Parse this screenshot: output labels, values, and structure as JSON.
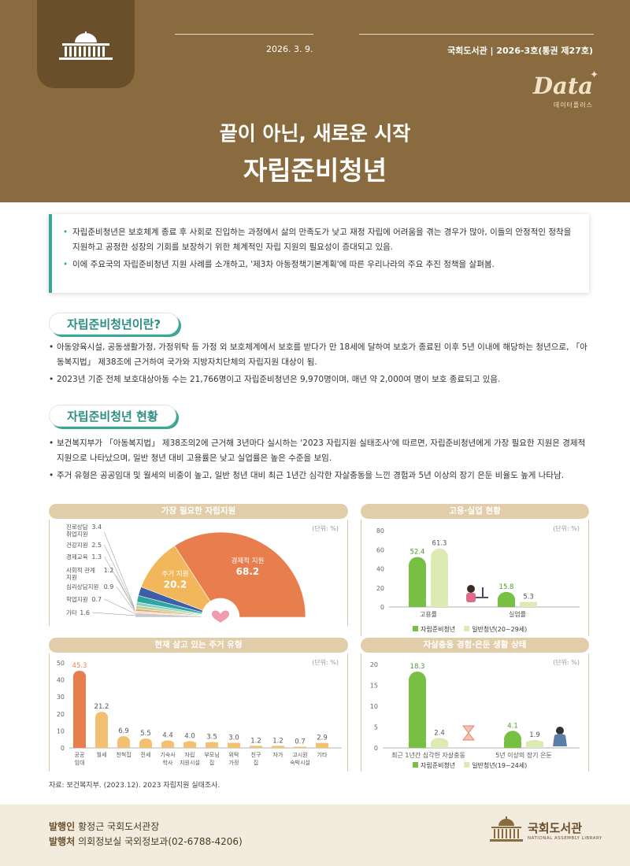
{
  "header": {
    "date": "2026. 3. 9.",
    "issue": "국회도서관 | 2026-3호(통권 제27호)",
    "brand": "Data",
    "brand_sub": "데이터플러스",
    "title_line1": "끝이 아닌, 새로운 시작",
    "title_line2": "자립준비청년"
  },
  "summary": [
    "자립준비청년은 보호체계 종료 후 사회로 진입하는 과정에서 삶의 만족도가 낮고 재정 자립에 어려움을 겪는 경우가 많아, 이들의 안정적인 정착을 지원하고 공정한 성장의 기회를 보장하기 위한 체계적인 자립 지원의 필요성이 증대되고 있음.",
    "이에 주요국의 자립준비청년 지원 사례를 소개하고, '제3차 아동정책기본계획'에 따른 우리나라의 주요 추진 정책을 살펴봄."
  ],
  "section1": {
    "title": "자립준비청년이란?",
    "bullets": [
      "아동양육시설, 공동생활가정, 가정위탁 등 가정 외 보호체계에서 보호를 받다가 만 18세에 달하여 보호가 종료된 이후 5년 이내에 해당하는 청년으로, 「아동복지법」 제38조에 근거하여 국가와 지방자치단체의 자립지원 대상이 됨.",
      "2023년 기준 전체 보호대상아동 수는 21,766명이고 자립준비청년은 9,970명이며, 매년 약 2,000여 명이 보호 종료되고 있음."
    ]
  },
  "section2": {
    "title": "자립준비청년 현황",
    "bullets": [
      "보건복지부가 「아동복지법」 제38조의2에 근거해 3년마다 실시하는 '2023 자립지원 실태조사'에 따르면, 자립준비청년에게 가장 필요한 지원은 경제적 지원으로 나타났으며, 일반 청년 대비 고용률은 낮고 실업률은 높은 수준을 보임.",
      "주거 유형은 공공임대 및 월세의 비중이 높고, 일반 청년 대비 최근 1년간 심각한 자살충동을 느낀 경험과 5년 이상의 장기 은둔 비율도 높게 나타남."
    ]
  },
  "colors": {
    "brown": "#8a6b3f",
    "teal": "#3aa796",
    "orange": "#e87d4e",
    "green": "#77c043",
    "light_green": "#dcebb4"
  },
  "chart_data": [
    {
      "type": "pie",
      "title": "가장 필요한 자립지원",
      "unit": "(단위: %)",
      "slices": [
        {
          "label": "경제적 지원",
          "value": 68.2,
          "color": "#e87d4e"
        },
        {
          "label": "주거 지원",
          "value": 20.2,
          "color": "#f3b75b"
        },
        {
          "label": "진로상담 취업지원",
          "value": 3.4,
          "color": "#3f5ea8"
        },
        {
          "label": "건강지원",
          "value": 2.5,
          "color": "#2ba6a0"
        },
        {
          "label": "경제교육",
          "value": 1.3,
          "color": "#90cfc9"
        },
        {
          "label": "사회적 관계 지원",
          "value": 1.2,
          "color": "#b8d98f"
        },
        {
          "label": "심리상담지원",
          "value": 0.9,
          "color": "#e89d7b"
        },
        {
          "label": "학업지원",
          "value": 0.7,
          "color": "#f5d7b6"
        },
        {
          "label": "기타",
          "value": 1.6,
          "color": "#c9c9c9"
        }
      ],
      "small_labels": [
        {
          "l1": "진로상담",
          "l2": "취업지원",
          "v": "3.4"
        },
        {
          "l1": "건강지원",
          "l2": "",
          "v": "2.5"
        },
        {
          "l1": "경제교육",
          "l2": "",
          "v": "1.3"
        },
        {
          "l1": "사회적 관계",
          "l2": "지원",
          "v": "1.2"
        },
        {
          "l1": "심리상담지원",
          "l2": "",
          "v": "0.9"
        },
        {
          "l1": "학업지원",
          "l2": "",
          "v": "0.7"
        },
        {
          "l1": "기타",
          "l2": "",
          "v": "1.6"
        }
      ]
    },
    {
      "type": "bar",
      "title": "고용·실업 현황",
      "unit": "(단위: %)",
      "categories": [
        "고용률",
        "실업률"
      ],
      "series": [
        {
          "name": "자립준비청년",
          "values": [
            52.4,
            15.8
          ],
          "color": "#77c043"
        },
        {
          "name": "일반청년(20~29세)",
          "values": [
            61.3,
            5.3
          ],
          "color": "#dcebb4"
        }
      ],
      "ylim": [
        0,
        80
      ],
      "yticks": [
        0,
        20,
        40,
        60,
        80
      ]
    },
    {
      "type": "bar",
      "title": "현재 살고 있는 주거 유형",
      "unit": "(단위: %)",
      "categories": [
        {
          "l1": "공공",
          "l2": "임대"
        },
        {
          "l1": "월세",
          "l2": ""
        },
        {
          "l1": "친척집",
          "l2": ""
        },
        {
          "l1": "전세",
          "l2": ""
        },
        {
          "l1": "기숙사",
          "l2": "학사"
        },
        {
          "l1": "자립",
          "l2": "지원시설"
        },
        {
          "l1": "부모님",
          "l2": "집"
        },
        {
          "l1": "위탁",
          "l2": "가정"
        },
        {
          "l1": "친구",
          "l2": "집"
        },
        {
          "l1": "자가",
          "l2": ""
        },
        {
          "l1": "고시원",
          "l2": "숙박시설"
        },
        {
          "l1": "기타",
          "l2": ""
        }
      ],
      "values": [
        45.3,
        21.2,
        6.9,
        5.5,
        4.4,
        4.0,
        3.5,
        3.0,
        1.2,
        1.2,
        0.7,
        2.9
      ],
      "labels": [
        "45.3",
        "21.2",
        "6.9",
        "5.5",
        "4.4",
        "4.0",
        "3.5",
        "3.0",
        "1.2",
        "1.2",
        "0.7",
        "2.9"
      ],
      "ylim": [
        0,
        50
      ],
      "yticks": [
        0,
        10,
        20,
        30,
        40,
        50
      ]
    },
    {
      "type": "bar",
      "title": "자살충동 경험·은둔 생활 상태",
      "unit": "(단위: %)",
      "categories": [
        "최근 1년간 심각한 자살충동",
        "5년 이상의 장기 은둔"
      ],
      "series": [
        {
          "name": "자립준비청년",
          "values": [
            18.3,
            4.1
          ],
          "color": "#77c043"
        },
        {
          "name": "일반청년(19~24세)",
          "values": [
            2.4,
            1.9
          ],
          "color": "#dcebb4"
        }
      ],
      "ylim": [
        0,
        20
      ],
      "yticks": [
        0,
        5,
        10,
        15,
        20
      ]
    }
  ],
  "source": "자료: 보건복지부. (2023.12). 2023 자립지원 실태조사.",
  "footer": {
    "publisher_label": "발행인",
    "publisher": "황정근 국회도서관장",
    "office_label": "발행처",
    "office": "의회정보실 국외정보과(02-6788-4206)",
    "logo_name": "국회도서관",
    "logo_en": "NATIONAL ASSEMBLY LIBRARY"
  }
}
